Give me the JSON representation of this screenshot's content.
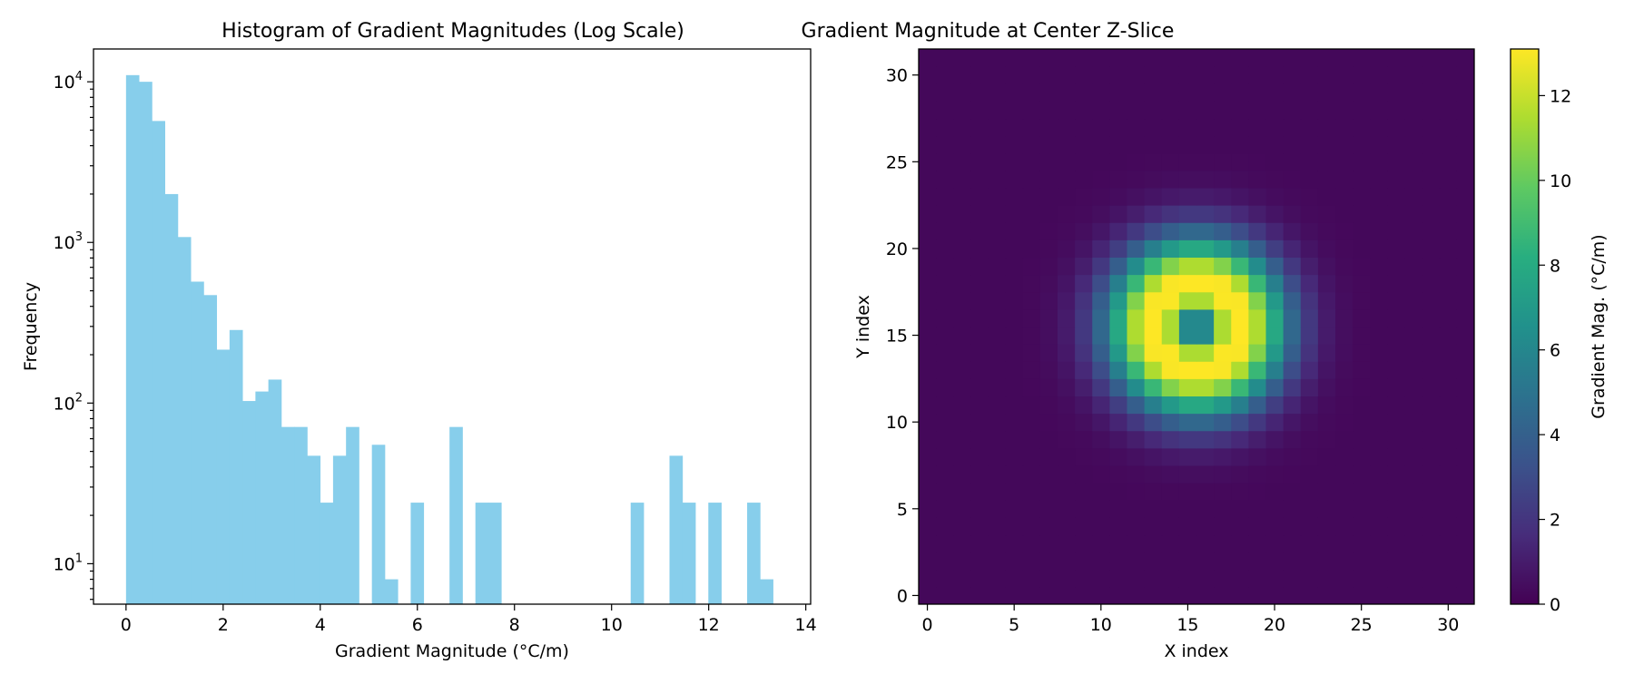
{
  "chart_data": [
    {
      "type": "bar",
      "title": "Histogram of Gradient Magnitudes (Log Scale)",
      "xlabel": "Gradient Magnitude (°C/m)",
      "ylabel": "Frequency",
      "yscale": "log",
      "xlim": [
        -0.67,
        14.1
      ],
      "ylim": [
        5.6,
        16000
      ],
      "xticks": [
        0,
        2,
        4,
        6,
        8,
        10,
        12,
        14
      ],
      "xtick_labels": [
        "0",
        "2",
        "4",
        "6",
        "8",
        "10",
        "12",
        "14"
      ],
      "yticks": [
        10,
        100,
        1000,
        10000
      ],
      "ytick_labels": [
        {
          "base": "10",
          "exp": "1"
        },
        {
          "base": "10",
          "exp": "2"
        },
        {
          "base": "10",
          "exp": "3"
        },
        {
          "base": "10",
          "exp": "4"
        }
      ],
      "bin_start": 0,
      "bin_width": 0.2665,
      "values": [
        11000,
        10000,
        5700,
        2000,
        1080,
        570,
        470,
        215,
        285,
        103,
        118,
        140,
        71,
        71,
        47,
        24,
        47,
        71,
        0,
        55,
        8,
        0,
        24,
        0,
        0,
        71,
        0,
        24,
        24,
        0,
        0,
        0,
        0,
        0,
        0,
        0,
        0,
        0,
        0,
        24,
        0,
        0,
        47,
        24,
        0,
        24,
        0,
        0,
        24,
        8
      ],
      "color": "#87ceeb",
      "grid": false
    },
    {
      "type": "heatmap",
      "title": "Gradient Magnitude at Center Z-Slice",
      "xlabel": "X index",
      "ylabel": "Y index",
      "xlim": [
        -0.5,
        31.5
      ],
      "ylim": [
        -0.5,
        31.5
      ],
      "xticks": [
        0,
        5,
        10,
        15,
        20,
        25,
        30
      ],
      "yticks": [
        0,
        5,
        10,
        15,
        20,
        25,
        30
      ],
      "grid_size": [
        32,
        32
      ],
      "colormap": "viridis",
      "center": [
        15.5,
        15.5
      ],
      "peak_value": 13.1,
      "peak_radius": 2.5,
      "colorbar": {
        "label": "Gradient Mag. (°C/m)",
        "range": [
          0,
          13.1
        ],
        "ticks": [
          0,
          2,
          4,
          6,
          8,
          10,
          12
        ]
      }
    }
  ]
}
